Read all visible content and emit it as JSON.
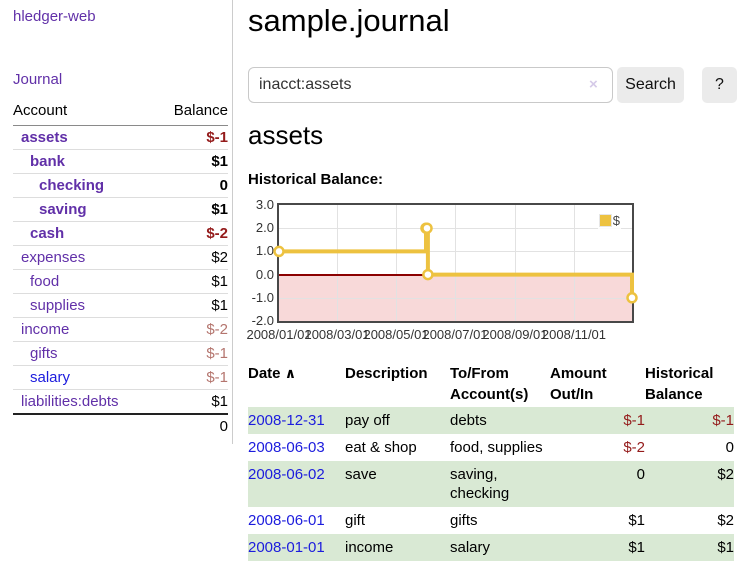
{
  "app": {
    "title": "hledger-web"
  },
  "sidebar": {
    "journal_label": "Journal",
    "accounts_table": {
      "headers": [
        "Account",
        "Balance"
      ],
      "rows": [
        {
          "name": "assets",
          "depth": 1,
          "bold": true,
          "name_class": "purple",
          "balance": "$-1",
          "balance_class": "neg"
        },
        {
          "name": "bank",
          "depth": 2,
          "bold": true,
          "name_class": "purple",
          "balance": "$1",
          "balance_class": "black"
        },
        {
          "name": "checking",
          "depth": 3,
          "bold": true,
          "name_class": "purple",
          "balance": "0",
          "balance_class": "black"
        },
        {
          "name": "saving",
          "depth": 3,
          "bold": true,
          "name_class": "purple",
          "balance": "$1",
          "balance_class": "black"
        },
        {
          "name": "cash",
          "depth": 2,
          "bold": true,
          "name_class": "purple",
          "balance": "$-2",
          "balance_class": "neg"
        },
        {
          "name": "expenses",
          "depth": 1,
          "bold": false,
          "name_class": "purple",
          "balance": "$2",
          "balance_class": "black"
        },
        {
          "name": "food",
          "depth": 2,
          "bold": false,
          "name_class": "purple",
          "balance": "$1",
          "balance_class": "black"
        },
        {
          "name": "supplies",
          "depth": 2,
          "bold": false,
          "name_class": "purple",
          "balance": "$1",
          "balance_class": "black"
        },
        {
          "name": "income",
          "depth": 1,
          "bold": false,
          "name_class": "purple",
          "balance": "$-2",
          "balance_class": "negmuted"
        },
        {
          "name": "gifts",
          "depth": 2,
          "bold": false,
          "name_class": "purple",
          "balance": "$-1",
          "balance_class": "negmuted"
        },
        {
          "name": "salary",
          "depth": 2,
          "bold": false,
          "name_class": "blue",
          "balance": "$-1",
          "balance_class": "negmuted"
        },
        {
          "name": "liabilities:debts",
          "depth": 1,
          "bold": false,
          "name_class": "purple",
          "balance": "$1",
          "balance_class": "black"
        }
      ],
      "total": "0"
    }
  },
  "main": {
    "title": "sample.journal",
    "search": {
      "value": "inacct:assets",
      "clear_icon": "×",
      "button_label": "Search",
      "help_label": "?"
    },
    "account_heading": "assets",
    "chart_label": "Historical Balance:"
  },
  "chart_data": {
    "type": "line",
    "title": "Historical Balance",
    "step": true,
    "series": [
      {
        "name": "$",
        "color": "#EDC240",
        "points": [
          [
            "2008-01-01",
            1
          ],
          [
            "2008-06-01",
            2
          ],
          [
            "2008-06-02",
            2
          ],
          [
            "2008-06-03",
            0
          ],
          [
            "2008-12-31",
            -1
          ]
        ]
      }
    ],
    "xlim": [
      "2008-01-01",
      "2008-12-31"
    ],
    "ylim": [
      -2,
      3
    ],
    "x_ticks": [
      "2008/01/01",
      "2008/03/01",
      "2008/05/01",
      "2008/07/01",
      "2008/09/01",
      "2008/11/01"
    ],
    "y_ticks": [
      3.0,
      2.0,
      1.0,
      0.0,
      -1.0,
      -2.0
    ],
    "xlabel": "",
    "ylabel": "",
    "grid": true,
    "legend_position": "top-right",
    "negative_region_color": "#F8D9D9",
    "zero_line_color": "#8B0000"
  },
  "register_table": {
    "headers": [
      "Date",
      "Description",
      "To/From Account(s)",
      "Amount Out/In",
      "Historical Balance"
    ],
    "sort_icon": "∧",
    "rows": [
      {
        "date": "2008-12-31",
        "description": "pay off",
        "accounts": "debts",
        "amount": "$-1",
        "amount_class": "neg",
        "balance": "$-1",
        "balance_class": "neg",
        "highlight": true
      },
      {
        "date": "2008-06-03",
        "description": "eat & shop",
        "accounts": "food, supplies",
        "amount": "$-2",
        "amount_class": "neg",
        "balance": "0",
        "balance_class": "black",
        "highlight": false
      },
      {
        "date": "2008-06-02",
        "description": "save",
        "accounts": "saving, checking",
        "amount": "0",
        "amount_class": "black",
        "balance": "$2",
        "balance_class": "black",
        "highlight": true
      },
      {
        "date": "2008-06-01",
        "description": "gift",
        "accounts": "gifts",
        "amount": "$1",
        "amount_class": "black",
        "balance": "$2",
        "balance_class": "black",
        "highlight": false
      },
      {
        "date": "2008-01-01",
        "description": "income",
        "accounts": "salary",
        "amount": "$1",
        "amount_class": "black",
        "balance": "$1",
        "balance_class": "black",
        "highlight": true
      }
    ]
  },
  "colors": {
    "accent_purple": "#6130a8",
    "link_blue": "#1c1cdd",
    "negative_red": "#941b1b",
    "muted_negative": "#b4756e",
    "row_green": "#d9e9d4",
    "chart_gold": "#EDC240",
    "negative_region_pink": "#F8D9D9",
    "zero_line_red": "#8B0000"
  }
}
